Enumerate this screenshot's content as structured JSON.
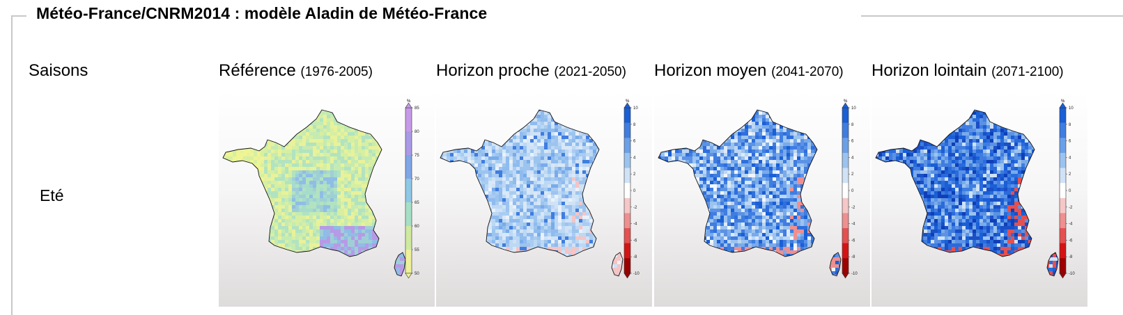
{
  "header": {
    "title": "Météo-France/CNRM2014 : modèle Aladin de Météo-France"
  },
  "columns": {
    "season": {
      "label": "Saisons"
    },
    "ref": {
      "label": "Référence",
      "period": "(1976-2005)"
    },
    "near": {
      "label": "Horizon proche",
      "period": "(2021-2050)"
    },
    "mid": {
      "label": "Horizon moyen",
      "period": "(2041-2070)"
    },
    "far": {
      "label": "Horizon lointain",
      "period": "(2071-2100)"
    }
  },
  "rows": [
    {
      "season": "Eté"
    }
  ],
  "maps": [
    {
      "colorbar": {
        "unit": "%",
        "ticks": [
          "85",
          "80",
          "75",
          "70",
          "65",
          "60",
          "55",
          "50"
        ],
        "colors": [
          "#c79ae8",
          "#a999e6",
          "#7fa6e6",
          "#8fc7e6",
          "#a6dfc6",
          "#cfe9a0",
          "#eef09a"
        ]
      },
      "palette": [
        "#eef592",
        "#eef592",
        "#e8f29a",
        "#d6efa2",
        "#c6ebb2",
        "#b2e3c0",
        "#a6dccb",
        "#9fcfd6",
        "#8fbde6",
        "#b79ae6"
      ]
    },
    {
      "colorbar": {
        "unit": "%",
        "ticks": [
          "10",
          "8",
          "6",
          "4",
          "2",
          "0",
          "-2",
          "-4",
          "-6",
          "-8",
          "-10"
        ],
        "colors": [
          "#1a5fd6",
          "#3f7de0",
          "#6aa0e8",
          "#9bc3ef",
          "#d0e2f6",
          "#ffffff",
          "#f6c7c7",
          "#ef8f8f",
          "#e55050",
          "#d41414",
          "#9c0000"
        ]
      },
      "palette": [
        "#d8e8f8",
        "#cfe2f6",
        "#bcd8f4",
        "#a9ccf1",
        "#9cc4ef",
        "#8fbbee",
        "#79abea",
        "#e9f1fb",
        "#f5c4c4",
        "#3f7de0"
      ]
    },
    {
      "colorbar": {
        "unit": "%",
        "ticks": [
          "10",
          "8",
          "6",
          "4",
          "2",
          "0",
          "-2",
          "-4",
          "-6",
          "-8",
          "-10"
        ],
        "colors": [
          "#1a5fd6",
          "#3f7de0",
          "#6aa0e8",
          "#9bc3ef",
          "#d0e2f6",
          "#ffffff",
          "#f6c7c7",
          "#ef8f8f",
          "#e55050",
          "#d41414",
          "#9c0000"
        ]
      },
      "palette": [
        "#2f6fdc",
        "#3f7de0",
        "#5b92e5",
        "#79abea",
        "#9bc3ef",
        "#bcd6f3",
        "#dce9f8",
        "#f1f6fc",
        "#ef8f8f",
        "#1a5fd6"
      ]
    },
    {
      "colorbar": {
        "unit": "%",
        "ticks": [
          "10",
          "8",
          "6",
          "4",
          "2",
          "0",
          "-2",
          "-4",
          "-6",
          "-8",
          "-10"
        ],
        "colors": [
          "#1a5fd6",
          "#3f7de0",
          "#6aa0e8",
          "#9bc3ef",
          "#d0e2f6",
          "#ffffff",
          "#f6c7c7",
          "#ef8f8f",
          "#e55050",
          "#d41414",
          "#9c0000"
        ]
      },
      "palette": [
        "#1a4fc6",
        "#1a5fd6",
        "#2a6bdb",
        "#3f7de0",
        "#5b92e5",
        "#79abea",
        "#9bc3ef",
        "#cfe2f6",
        "#e55050",
        "#0f3fb8"
      ]
    }
  ]
}
